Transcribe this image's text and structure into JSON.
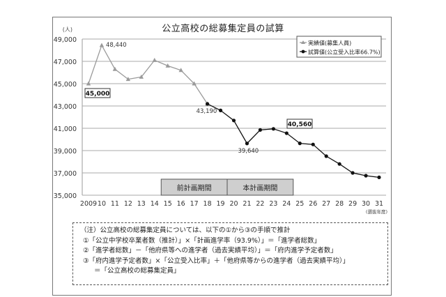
{
  "chart_data": {
    "type": "line",
    "title": "公立高校の総募集定員の試算",
    "xlabel": "(選抜年度)",
    "ylabel": "(人)",
    "ylim": [
      35000,
      49000
    ],
    "yticks": [
      35000,
      37000,
      39000,
      41000,
      43000,
      45000,
      47000,
      49000
    ],
    "ytick_labels": [
      "35,000",
      "37,000",
      "39,000",
      "41,000",
      "43,000",
      "45,000",
      "47,000",
      "49,000"
    ],
    "grid": true,
    "legend_position": "top-right",
    "categories": [
      "2009",
      "10",
      "11",
      "12",
      "13",
      "14",
      "15",
      "16",
      "17",
      "18",
      "19",
      "20",
      "21",
      "22",
      "23",
      "24",
      "25",
      "26",
      "27",
      "28",
      "29",
      "30",
      "31"
    ],
    "series": [
      {
        "name": "実績値(募集人員)",
        "marker": "triangle",
        "color": "#9a9a9a",
        "values": [
          45000,
          48440,
          46300,
          45400,
          45600,
          47100,
          46600,
          46200,
          45000,
          43190,
          null,
          null,
          null,
          null,
          null,
          null,
          null,
          null,
          null,
          null,
          null,
          null,
          null
        ]
      },
      {
        "name": "試算値(公立受入比率66.7%)",
        "marker": "circle",
        "color": "#111111",
        "values": [
          null,
          null,
          null,
          null,
          null,
          null,
          null,
          null,
          null,
          43190,
          42600,
          41700,
          39640,
          40850,
          40950,
          40560,
          39650,
          39550,
          38500,
          37800,
          37000,
          36750,
          36600
        ]
      }
    ],
    "annotations": [
      {
        "text": "48,440",
        "index": 1,
        "series": 0,
        "boxed": false
      },
      {
        "text": "45,000",
        "index": 0,
        "series": 0,
        "boxed": true
      },
      {
        "text": "43,190",
        "index": 9,
        "series": 0,
        "boxed": false
      },
      {
        "text": "39,640",
        "index": 12,
        "series": 1,
        "boxed": false
      },
      {
        "text": "40,560",
        "index": 15,
        "series": 1,
        "boxed": true
      }
    ],
    "periods": [
      {
        "label": "前計画期間",
        "from": "15",
        "to": "19"
      },
      {
        "label": "本計画期間",
        "from": "20",
        "to": "24"
      }
    ]
  },
  "note": {
    "lines": [
      "（注）公立高校の総募集定員については、以下の①から③の手順で推計",
      "①「公立中学校卒業者数（推計）」×「計画進学率（93.9%）」＝「進学者総数」",
      "②「進学者総数」－「他府県等への進学者（過去実績平均）」＝「府内進学予定者数」",
      "③「府内進学予定者数」×「公立受入比率」＋「他府県等からの進学者（過去実績平均）」",
      "＝「公立高校の総募集定員」"
    ]
  }
}
